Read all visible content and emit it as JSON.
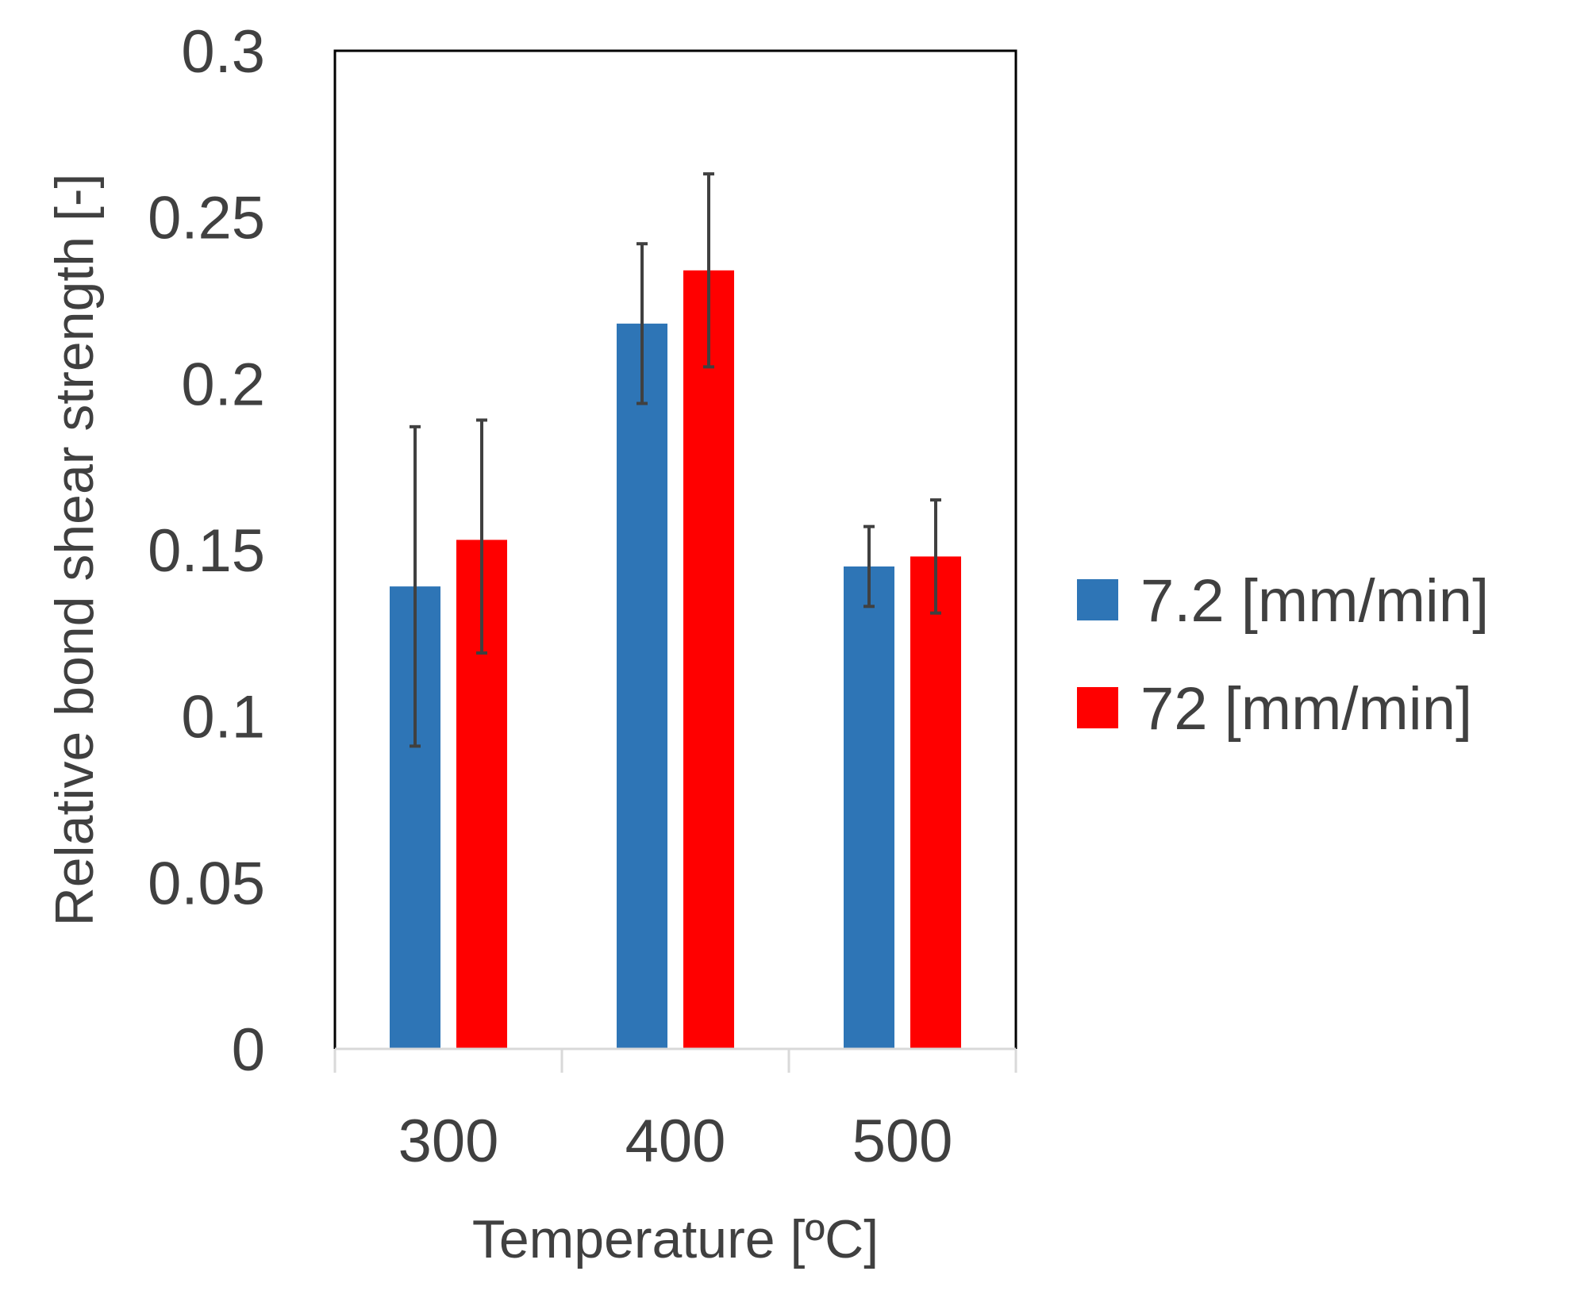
{
  "chart_data": {
    "type": "bar",
    "title": "",
    "xlabel": "Temperature [ºC]",
    "ylabel": "Relative bond shear strength [-]",
    "ylim": [
      0,
      0.3
    ],
    "yticks": [
      "0",
      "0.05",
      "0.1",
      "0.15",
      "0.2",
      "0.25",
      "0.3"
    ],
    "categories": [
      "300",
      "400",
      "500"
    ],
    "series": [
      {
        "name": "7.2 [mm/min]",
        "color": "#2E75B6",
        "values": [
          0.139,
          0.218,
          0.145
        ],
        "error_low": [
          0.091,
          0.194,
          0.133
        ],
        "error_high": [
          0.187,
          0.242,
          0.157
        ]
      },
      {
        "name": "72 [mm/min]",
        "color": "#FF0000",
        "values": [
          0.153,
          0.234,
          0.148
        ],
        "error_low": [
          0.119,
          0.205,
          0.131
        ],
        "error_high": [
          0.189,
          0.263,
          0.165
        ]
      }
    ],
    "grid": false,
    "legend_position": "right",
    "error_bar_color": "#404040"
  }
}
